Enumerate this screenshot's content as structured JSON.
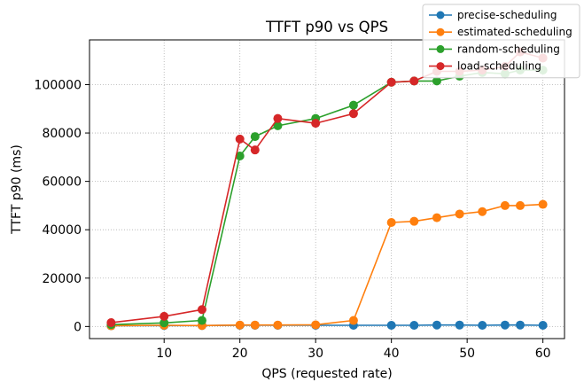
{
  "chart_data": {
    "type": "line",
    "title": "TTFT p90 vs QPS",
    "xlabel": "QPS (requested rate)",
    "ylabel": "TTFT p90 (ms)",
    "xlim": [
      0.15,
      62.85
    ],
    "ylim": [
      -5000,
      118500
    ],
    "xticks": [
      10,
      20,
      30,
      40,
      50,
      60
    ],
    "yticks": [
      0,
      20000,
      40000,
      60000,
      80000,
      100000
    ],
    "grid": true,
    "grid_style": "dotted",
    "legend_position": "top-right",
    "x": [
      3,
      10,
      15,
      20,
      22,
      25,
      30,
      35,
      40,
      43,
      46,
      49,
      52,
      55,
      57,
      60
    ],
    "series": [
      {
        "name": "precise-scheduling",
        "color": "#1f77b4",
        "values": [
          300,
          400,
          400,
          500,
          500,
          500,
          500,
          500,
          500,
          500,
          600,
          600,
          500,
          600,
          600,
          500
        ]
      },
      {
        "name": "estimated-scheduling",
        "color": "#ff7f0e",
        "values": [
          300,
          500,
          400,
          600,
          600,
          600,
          700,
          2500,
          43000,
          43500,
          45000,
          46500,
          47500,
          50000,
          50000,
          50500
        ]
      },
      {
        "name": "random-scheduling",
        "color": "#2ca02c",
        "values": [
          800,
          1500,
          2500,
          70500,
          78500,
          83000,
          86000,
          91500,
          101000,
          101500,
          101500,
          103500,
          105000,
          104500,
          106000,
          106000
        ]
      },
      {
        "name": "load-scheduling",
        "color": "#d62728",
        "values": [
          1600,
          4200,
          7000,
          77500,
          73000,
          86000,
          84000,
          88000,
          101000,
          101500,
          105500,
          105500,
          106000,
          107500,
          113500,
          111000
        ]
      }
    ]
  }
}
